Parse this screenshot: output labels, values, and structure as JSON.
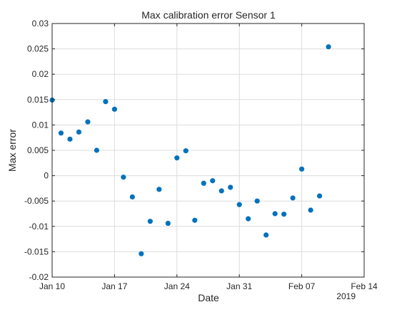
{
  "chart_data": {
    "type": "scatter",
    "title": "Max calibration error Sensor 1",
    "xlabel": "Date",
    "ylabel": "Max error",
    "x_year_label": "2019",
    "xlim": [
      "2019-01-10",
      "2019-02-14"
    ],
    "ylim": [
      -0.02,
      0.03
    ],
    "xticks": [
      {
        "date": "2019-01-10",
        "label": "Jan 10"
      },
      {
        "date": "2019-01-17",
        "label": "Jan 17"
      },
      {
        "date": "2019-01-24",
        "label": "Jan 24"
      },
      {
        "date": "2019-01-31",
        "label": "Jan 31"
      },
      {
        "date": "2019-02-07",
        "label": "Feb 07"
      },
      {
        "date": "2019-02-14",
        "label": "Feb 14"
      }
    ],
    "yticks": [
      {
        "value": -0.02,
        "label": "-0.02"
      },
      {
        "value": -0.015,
        "label": "-0.015"
      },
      {
        "value": -0.01,
        "label": "-0.01"
      },
      {
        "value": -0.005,
        "label": "-0.005"
      },
      {
        "value": 0,
        "label": "0"
      },
      {
        "value": 0.005,
        "label": "0.005"
      },
      {
        "value": 0.01,
        "label": "0.01"
      },
      {
        "value": 0.015,
        "label": "0.015"
      },
      {
        "value": 0.02,
        "label": "0.02"
      },
      {
        "value": 0.025,
        "label": "0.025"
      },
      {
        "value": 0.03,
        "label": "0.03"
      }
    ],
    "grid": true,
    "marker_color": "#0072BD",
    "points": [
      {
        "x": "2019-01-10",
        "y": 0.0149
      },
      {
        "x": "2019-01-11",
        "y": 0.0084
      },
      {
        "x": "2019-01-12",
        "y": 0.0072
      },
      {
        "x": "2019-01-13",
        "y": 0.0086
      },
      {
        "x": "2019-01-14",
        "y": 0.0106
      },
      {
        "x": "2019-01-15",
        "y": 0.005
      },
      {
        "x": "2019-01-16",
        "y": 0.0146
      },
      {
        "x": "2019-01-17",
        "y": 0.0131
      },
      {
        "x": "2019-01-18",
        "y": -0.0003
      },
      {
        "x": "2019-01-19",
        "y": -0.0042
      },
      {
        "x": "2019-01-20",
        "y": -0.0154
      },
      {
        "x": "2019-01-21",
        "y": -0.009
      },
      {
        "x": "2019-01-22",
        "y": -0.0027
      },
      {
        "x": "2019-01-23",
        "y": -0.0094
      },
      {
        "x": "2019-01-24",
        "y": 0.0035
      },
      {
        "x": "2019-01-25",
        "y": 0.0049
      },
      {
        "x": "2019-01-26",
        "y": -0.0088
      },
      {
        "x": "2019-01-27",
        "y": -0.0015
      },
      {
        "x": "2019-01-28",
        "y": -0.001
      },
      {
        "x": "2019-01-29",
        "y": -0.003
      },
      {
        "x": "2019-01-30",
        "y": -0.0023
      },
      {
        "x": "2019-01-31",
        "y": -0.0057
      },
      {
        "x": "2019-02-01",
        "y": -0.0085
      },
      {
        "x": "2019-02-02",
        "y": -0.005
      },
      {
        "x": "2019-02-03",
        "y": -0.0117
      },
      {
        "x": "2019-02-04",
        "y": -0.0075
      },
      {
        "x": "2019-02-05",
        "y": -0.0076
      },
      {
        "x": "2019-02-06",
        "y": -0.0044
      },
      {
        "x": "2019-02-07",
        "y": 0.0013
      },
      {
        "x": "2019-02-08",
        "y": -0.0068
      },
      {
        "x": "2019-02-09",
        "y": -0.004
      },
      {
        "x": "2019-02-10",
        "y": 0.0254
      }
    ]
  }
}
